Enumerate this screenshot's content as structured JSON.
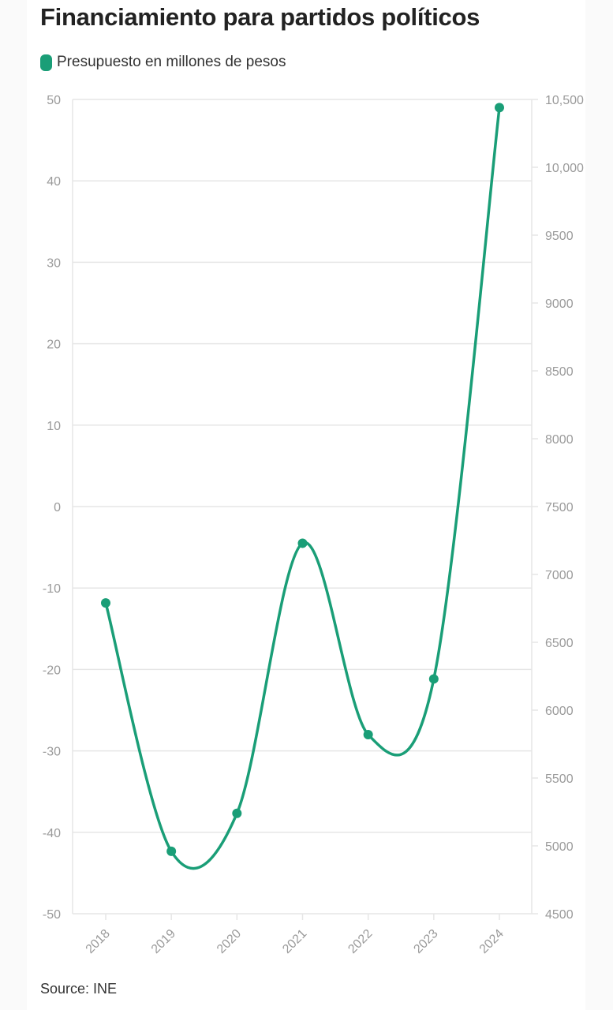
{
  "title": "Financiamiento para partidos políticos",
  "source": "Source: INE",
  "colors": {
    "series": "#1a9e77",
    "grid": "#e6e6e6",
    "tick": "#9a9a9a"
  },
  "chart_data": {
    "type": "line",
    "title": "Financiamiento para partidos políticos",
    "x": [
      "2018",
      "2019",
      "2020",
      "2021",
      "2022",
      "2023",
      "2024"
    ],
    "series": [
      {
        "name": "Presupuesto en millones de pesos",
        "axis": "right",
        "values": [
          6790,
          4960,
          5240,
          7230,
          5820,
          6230,
          10440
        ]
      }
    ],
    "y_left": {
      "ticks": [
        "50",
        "40",
        "30",
        "20",
        "10",
        "0",
        "-10",
        "-20",
        "-30",
        "-40",
        "-50"
      ],
      "range": [
        -50,
        50
      ]
    },
    "y_right": {
      "ticks": [
        "10,500",
        "10,000",
        "9500",
        "9000",
        "8500",
        "8000",
        "7500",
        "7000",
        "6500",
        "6000",
        "5500",
        "5000",
        "4500"
      ],
      "range": [
        4500,
        10500
      ]
    },
    "grid": true,
    "legend": "top-left"
  }
}
